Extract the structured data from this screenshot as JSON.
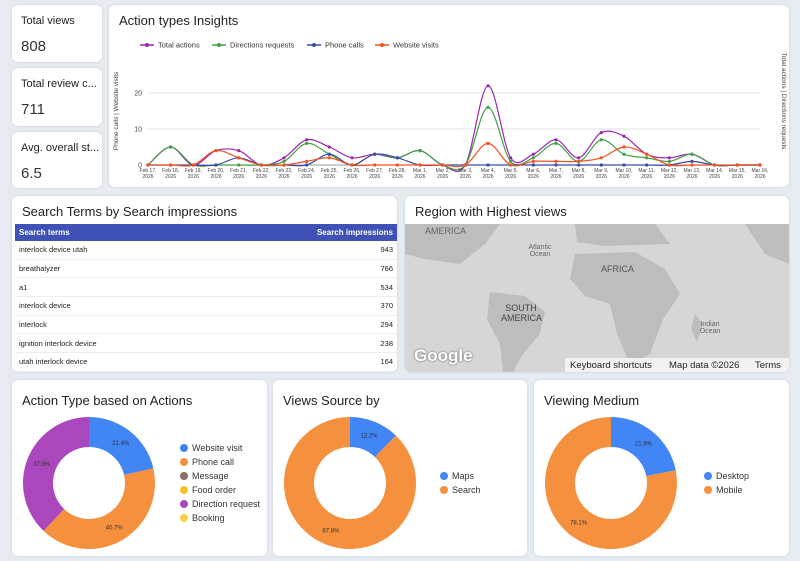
{
  "kpis": [
    {
      "label": "Total views",
      "value": 808
    },
    {
      "label": "Total review c...",
      "value": 711
    },
    {
      "label": "Avg. overall st...",
      "value": 6.5
    }
  ],
  "table": {
    "title": "Search Terms by Search impressions",
    "columns": [
      "Search terms",
      "Search impressions"
    ],
    "rows": [
      [
        "interlock device utah",
        943
      ],
      [
        "breathalyzer",
        766
      ],
      [
        "a1",
        534
      ],
      [
        "interlock device",
        370
      ],
      [
        "interlock",
        294
      ],
      [
        "ignition interlock device",
        238
      ],
      [
        "utah interlock device",
        164
      ]
    ]
  },
  "map": {
    "title": "Region with Highest views",
    "labels": [
      "AMERICA",
      "Atlantic Ocean",
      "AFRICA",
      "SOUTH AMERICA",
      "Indian Ocean"
    ],
    "brand": "Google",
    "footer": [
      "Keyboard shortcuts",
      "Map data ©2026",
      "Terms"
    ]
  },
  "chart_data": [
    {
      "type": "line",
      "title": "Action types Insights",
      "y_label": "Phone calls | Website visits",
      "y2_label": "Total actions | Directions requests",
      "x": [
        "Feb 17, 2026",
        "Feb 18, 2026",
        "Feb 19, 2026",
        "Feb 20, 2026",
        "Feb 21, 2026",
        "Feb 22, 2026",
        "Feb 23, 2026",
        "Feb 24, 2026",
        "Feb 25, 2026",
        "Feb 26, 2026",
        "Feb 27, 2026",
        "Feb 28, 2026",
        "Mar 1, 2026",
        "Mar 2, 2026",
        "Mar 3, 2026",
        "Mar 4, 2026",
        "Mar 5, 2026",
        "Mar 6, 2026",
        "Mar 7, 2026",
        "Mar 8, 2026",
        "Mar 9, 2026",
        "Mar 10, 2026",
        "Mar 11, 2026",
        "Mar 12, 2026",
        "Mar 13, 2026",
        "Mar 14, 2026",
        "Mar 15, 2026",
        "Mar 16, 2026"
      ],
      "series": [
        {
          "name": "Total actions",
          "color": "#9c27b0",
          "axis": "y2",
          "values": [
            0,
            5,
            0,
            4,
            4,
            0,
            2,
            7,
            5,
            2,
            3,
            2,
            4,
            0,
            0,
            22,
            2,
            3,
            7,
            2,
            9,
            8,
            3,
            2,
            3,
            0,
            0,
            0
          ]
        },
        {
          "name": "Directions requests",
          "color": "#43a047",
          "axis": "y2",
          "values": [
            0,
            5,
            0,
            0,
            0,
            0,
            1,
            6,
            3,
            0,
            3,
            2,
            4,
            0,
            0,
            16,
            1,
            2,
            6,
            1,
            7,
            3,
            2,
            1,
            3,
            0,
            0,
            0
          ]
        },
        {
          "name": "Phone calls",
          "color": "#3949ab",
          "values": [
            0,
            0,
            0,
            0,
            2,
            0,
            0,
            0,
            3,
            0,
            3,
            2,
            0,
            0,
            0,
            0,
            0,
            0,
            0,
            0,
            0,
            0,
            0,
            0,
            1,
            0,
            0,
            0
          ]
        },
        {
          "name": "Website visits",
          "color": "#f4511e",
          "values": [
            0,
            0,
            0,
            4,
            2,
            0,
            0,
            1,
            2,
            0,
            0,
            0,
            0,
            0,
            0,
            6,
            0,
            1,
            1,
            1,
            2,
            5,
            3,
            0,
            0,
            0,
            0,
            0
          ]
        }
      ],
      "ylim": [
        0,
        30
      ],
      "yticks": [
        0,
        10,
        20
      ],
      "y2lim": [
        0,
        30
      ],
      "grid": true
    },
    {
      "type": "pie",
      "title": "Action Type based on Actions",
      "donut": true,
      "categories": [
        "Website visit",
        "Phone call",
        "Message",
        "Food order",
        "Direction request",
        "Booking"
      ],
      "colors": [
        "#4285f4",
        "#f5913e",
        "#8d6e63",
        "#f2c12e",
        "#ab47bc",
        "#f6d046"
      ],
      "values": [
        21.4,
        40.7,
        0,
        0,
        37.9,
        0
      ],
      "value_labels": [
        "21.4%",
        "40.7%",
        null,
        null,
        "37.9%",
        null
      ]
    },
    {
      "type": "pie",
      "title": "Views Source by",
      "donut": true,
      "categories": [
        "Maps",
        "Search"
      ],
      "colors": [
        "#4285f4",
        "#f5913e"
      ],
      "values": [
        12.2,
        87.8
      ],
      "value_labels": [
        "12.2%",
        "87.8%"
      ]
    },
    {
      "type": "pie",
      "title": "Viewing Medium",
      "donut": true,
      "categories": [
        "Desktop",
        "Mobile"
      ],
      "colors": [
        "#4285f4",
        "#f5913e"
      ],
      "values": [
        21.9,
        78.1
      ],
      "value_labels": [
        "21.9%",
        "78.1%"
      ]
    }
  ]
}
